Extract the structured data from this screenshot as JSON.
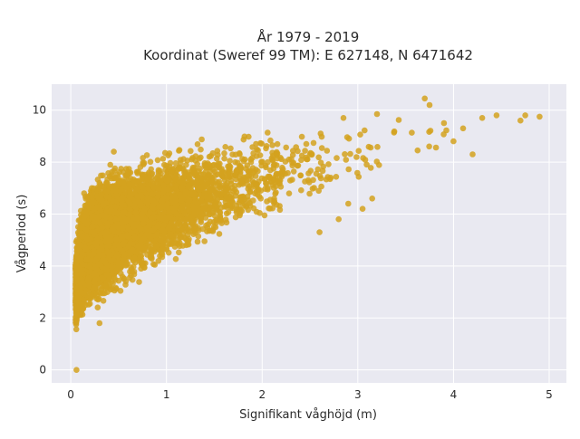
{
  "chart_data": {
    "type": "scatter",
    "title_line1": "År 1979 - 2019",
    "title_line2": "Koordinat (Sweref 99 TM): E 627148, N 6471642",
    "xlabel": "Signifikant våghöjd (m)",
    "ylabel": "Vågperiod (s)",
    "xlim": [
      -0.2,
      5.18
    ],
    "ylim": [
      -0.5,
      11.0
    ],
    "xticks": [
      0,
      1,
      2,
      3,
      4,
      5
    ],
    "yticks": [
      0,
      2,
      4,
      6,
      8,
      10
    ],
    "grid": true,
    "plot_background": "#e9e9f1",
    "grid_color": "#ffffff",
    "marker_color": "#d4a21f",
    "distribution": {
      "description_points_estimated": "dense cloud; period rises steeply at low heights and flattens toward larger heights",
      "envelope": [
        {
          "x": 0.05,
          "y_low": 1.2,
          "y_high": 5.0
        },
        {
          "x": 0.1,
          "y_low": 1.5,
          "y_high": 6.5
        },
        {
          "x": 0.2,
          "y_low": 2.0,
          "y_high": 7.5
        },
        {
          "x": 0.5,
          "y_low": 2.8,
          "y_high": 8.2
        },
        {
          "x": 1.0,
          "y_low": 3.8,
          "y_high": 8.8
        },
        {
          "x": 1.5,
          "y_low": 4.5,
          "y_high": 9.3
        },
        {
          "x": 2.0,
          "y_low": 5.3,
          "y_high": 9.5
        },
        {
          "x": 2.5,
          "y_low": 6.0,
          "y_high": 9.7
        },
        {
          "x": 3.0,
          "y_low": 6.8,
          "y_high": 9.8
        },
        {
          "x": 3.5,
          "y_low": 7.5,
          "y_high": 10.2
        },
        {
          "x": 4.0,
          "y_low": 8.0,
          "y_high": 9.8
        },
        {
          "x": 4.5,
          "y_low": 8.8,
          "y_high": 9.8
        },
        {
          "x": 4.9,
          "y_low": 9.6,
          "y_high": 9.8
        }
      ]
    },
    "outliers": [
      {
        "x": 0.06,
        "y": 0.0
      },
      {
        "x": 3.7,
        "y": 10.45
      },
      {
        "x": 3.75,
        "y": 10.2
      },
      {
        "x": 4.9,
        "y": 9.75
      },
      {
        "x": 4.75,
        "y": 9.8
      },
      {
        "x": 4.7,
        "y": 9.6
      },
      {
        "x": 4.45,
        "y": 9.8
      },
      {
        "x": 4.3,
        "y": 9.7
      },
      {
        "x": 4.1,
        "y": 9.3
      },
      {
        "x": 4.0,
        "y": 8.8
      },
      {
        "x": 4.2,
        "y": 8.3
      },
      {
        "x": 3.9,
        "y": 9.5
      },
      {
        "x": 3.2,
        "y": 9.85
      },
      {
        "x": 2.85,
        "y": 9.7
      },
      {
        "x": 2.6,
        "y": 5.3
      },
      {
        "x": 3.05,
        "y": 6.2
      },
      {
        "x": 3.15,
        "y": 6.6
      },
      {
        "x": 2.9,
        "y": 6.4
      },
      {
        "x": 2.8,
        "y": 5.8
      },
      {
        "x": 0.3,
        "y": 1.8
      },
      {
        "x": 0.45,
        "y": 8.4
      }
    ]
  }
}
